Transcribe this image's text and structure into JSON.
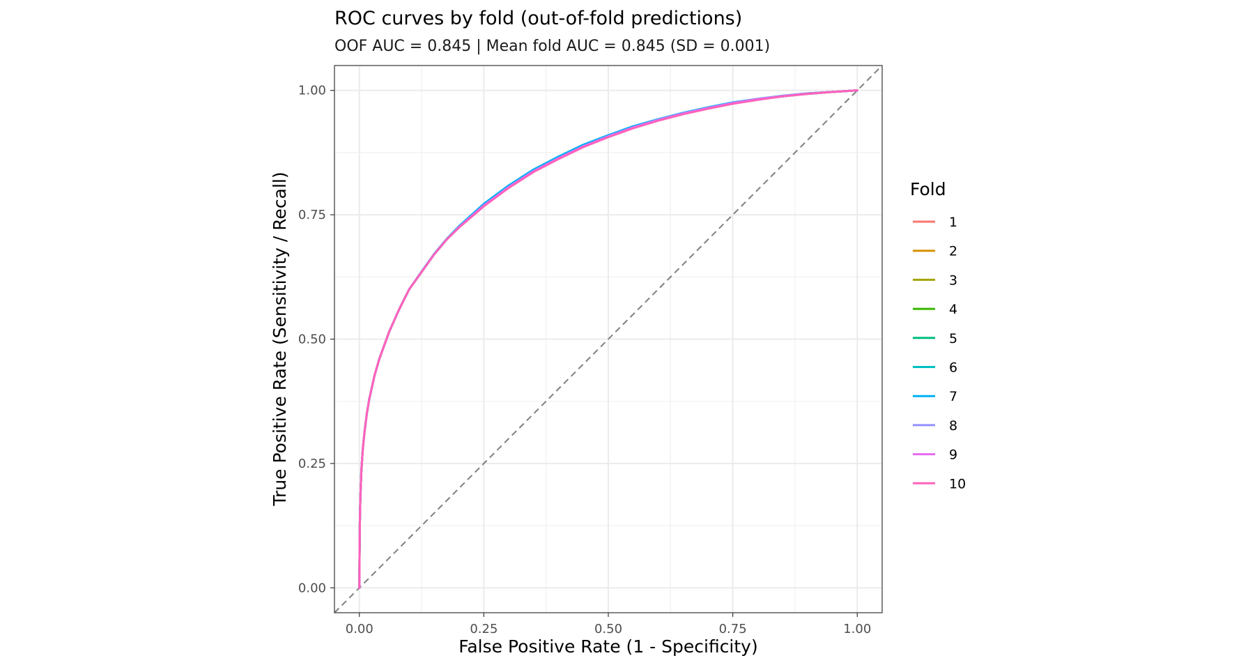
{
  "chart_data": {
    "type": "line",
    "title": "ROC curves by fold (out-of-fold predictions)",
    "subtitle": "OOF AUC = 0.845 | Mean fold AUC = 0.845 (SD = 0.001)",
    "xlabel": "False Positive Rate (1 - Specificity)",
    "ylabel": "True Positive Rate (Sensitivity / Recall)",
    "xlim": [
      -0.05,
      1.05
    ],
    "ylim": [
      -0.05,
      1.05
    ],
    "x_ticks": [
      0.0,
      0.25,
      0.5,
      0.75,
      1.0
    ],
    "x_tick_labels": [
      "0.00",
      "0.25",
      "0.50",
      "0.75",
      "1.00"
    ],
    "y_ticks": [
      0.0,
      0.25,
      0.5,
      0.75,
      1.0
    ],
    "y_tick_labels": [
      "0.00",
      "0.25",
      "0.50",
      "0.75",
      "1.00"
    ],
    "grid": true,
    "legend_title": "Fold",
    "legend_position": "right",
    "reference_line": {
      "style": "dashed",
      "color": "#7f7f7f",
      "from": [
        -0.05,
        -0.05
      ],
      "to": [
        1.05,
        1.05
      ]
    },
    "x": [
      0.0,
      0.0005,
      0.001,
      0.002,
      0.004,
      0.007,
      0.01,
      0.015,
      0.02,
      0.03,
      0.04,
      0.06,
      0.08,
      0.1,
      0.125,
      0.15,
      0.175,
      0.2,
      0.25,
      0.3,
      0.35,
      0.4,
      0.45,
      0.5,
      0.55,
      0.6,
      0.65,
      0.7,
      0.75,
      0.8,
      0.85,
      0.9,
      0.95,
      1.0
    ],
    "series": [
      {
        "name": "1",
        "color": "#F8766D",
        "values": [
          0.0,
          0.08,
          0.13,
          0.18,
          0.235,
          0.28,
          0.31,
          0.35,
          0.38,
          0.425,
          0.46,
          0.515,
          0.56,
          0.6,
          0.635,
          0.67,
          0.7,
          0.725,
          0.768,
          0.805,
          0.837,
          0.863,
          0.887,
          0.907,
          0.925,
          0.94,
          0.953,
          0.964,
          0.974,
          0.982,
          0.988,
          0.993,
          0.997,
          1.0
        ]
      },
      {
        "name": "2",
        "color": "#D89000",
        "values": [
          0.0,
          0.08,
          0.13,
          0.18,
          0.235,
          0.28,
          0.31,
          0.35,
          0.38,
          0.425,
          0.46,
          0.515,
          0.56,
          0.6,
          0.635,
          0.67,
          0.7,
          0.725,
          0.769,
          0.806,
          0.838,
          0.864,
          0.888,
          0.908,
          0.926,
          0.941,
          0.954,
          0.965,
          0.975,
          0.983,
          0.989,
          0.994,
          0.997,
          1.0
        ]
      },
      {
        "name": "3",
        "color": "#A3A500",
        "values": [
          0.0,
          0.08,
          0.13,
          0.18,
          0.235,
          0.28,
          0.31,
          0.35,
          0.38,
          0.425,
          0.46,
          0.515,
          0.56,
          0.6,
          0.635,
          0.67,
          0.7,
          0.725,
          0.768,
          0.806,
          0.837,
          0.864,
          0.887,
          0.907,
          0.925,
          0.94,
          0.953,
          0.964,
          0.974,
          0.982,
          0.988,
          0.993,
          0.997,
          1.0
        ]
      },
      {
        "name": "4",
        "color": "#39B600",
        "values": [
          0.0,
          0.08,
          0.13,
          0.18,
          0.235,
          0.28,
          0.31,
          0.35,
          0.38,
          0.425,
          0.46,
          0.515,
          0.56,
          0.6,
          0.635,
          0.67,
          0.7,
          0.725,
          0.769,
          0.806,
          0.838,
          0.865,
          0.888,
          0.908,
          0.926,
          0.941,
          0.954,
          0.965,
          0.975,
          0.982,
          0.989,
          0.993,
          0.997,
          1.0
        ]
      },
      {
        "name": "5",
        "color": "#00BF7D",
        "values": [
          0.0,
          0.08,
          0.13,
          0.18,
          0.235,
          0.28,
          0.31,
          0.35,
          0.38,
          0.425,
          0.46,
          0.515,
          0.56,
          0.6,
          0.635,
          0.67,
          0.7,
          0.725,
          0.768,
          0.805,
          0.837,
          0.864,
          0.887,
          0.907,
          0.925,
          0.94,
          0.953,
          0.964,
          0.974,
          0.982,
          0.988,
          0.993,
          0.997,
          1.0
        ]
      },
      {
        "name": "6",
        "color": "#00BFC4",
        "values": [
          0.0,
          0.08,
          0.13,
          0.18,
          0.235,
          0.28,
          0.31,
          0.35,
          0.38,
          0.425,
          0.46,
          0.515,
          0.56,
          0.6,
          0.635,
          0.67,
          0.7,
          0.726,
          0.77,
          0.807,
          0.839,
          0.865,
          0.889,
          0.908,
          0.926,
          0.941,
          0.954,
          0.965,
          0.975,
          0.983,
          0.989,
          0.994,
          0.997,
          1.0
        ]
      },
      {
        "name": "7",
        "color": "#00B0F6",
        "values": [
          0.0,
          0.08,
          0.13,
          0.18,
          0.235,
          0.28,
          0.31,
          0.35,
          0.38,
          0.425,
          0.46,
          0.515,
          0.56,
          0.6,
          0.636,
          0.671,
          0.701,
          0.727,
          0.772,
          0.809,
          0.841,
          0.867,
          0.891,
          0.91,
          0.928,
          0.942,
          0.955,
          0.966,
          0.976,
          0.983,
          0.989,
          0.994,
          0.997,
          1.0
        ]
      },
      {
        "name": "8",
        "color": "#9590FF",
        "values": [
          0.0,
          0.08,
          0.13,
          0.18,
          0.235,
          0.28,
          0.31,
          0.35,
          0.38,
          0.425,
          0.46,
          0.515,
          0.56,
          0.6,
          0.635,
          0.67,
          0.7,
          0.725,
          0.769,
          0.806,
          0.838,
          0.864,
          0.888,
          0.908,
          0.926,
          0.941,
          0.954,
          0.965,
          0.975,
          0.983,
          0.989,
          0.994,
          0.997,
          1.0
        ]
      },
      {
        "name": "9",
        "color": "#E76BF3",
        "values": [
          0.0,
          0.08,
          0.13,
          0.18,
          0.235,
          0.28,
          0.31,
          0.35,
          0.38,
          0.425,
          0.46,
          0.515,
          0.56,
          0.6,
          0.635,
          0.67,
          0.7,
          0.725,
          0.768,
          0.805,
          0.837,
          0.863,
          0.887,
          0.907,
          0.925,
          0.94,
          0.953,
          0.964,
          0.974,
          0.982,
          0.988,
          0.993,
          0.997,
          1.0
        ]
      },
      {
        "name": "10",
        "color": "#FF62BC",
        "values": [
          0.0,
          0.08,
          0.13,
          0.18,
          0.235,
          0.28,
          0.31,
          0.35,
          0.38,
          0.425,
          0.46,
          0.515,
          0.56,
          0.6,
          0.635,
          0.67,
          0.7,
          0.724,
          0.767,
          0.804,
          0.836,
          0.862,
          0.886,
          0.906,
          0.924,
          0.939,
          0.952,
          0.963,
          0.973,
          0.981,
          0.988,
          0.993,
          0.997,
          1.0
        ]
      }
    ]
  }
}
